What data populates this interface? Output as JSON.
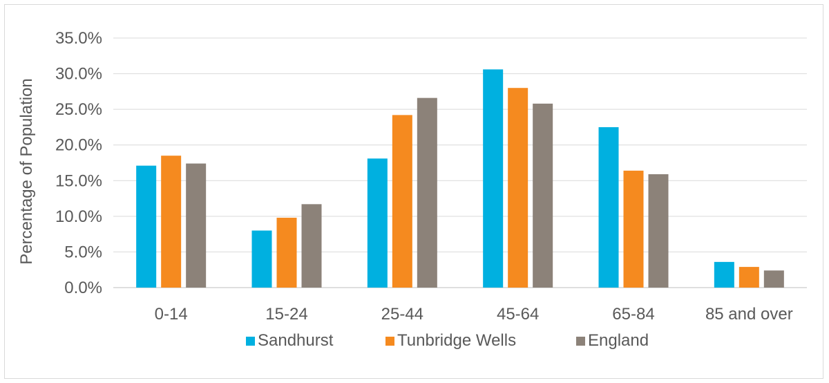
{
  "chart_data": {
    "type": "bar",
    "title": "",
    "xlabel": "",
    "ylabel": "Percentage of Population",
    "categories": [
      "0-14",
      "15-24",
      "25-44",
      "45-64",
      "65-84",
      "85 and over"
    ],
    "ylim": [
      0,
      35
    ],
    "yticks": [
      "0.0%",
      "5.0%",
      "10.0%",
      "15.0%",
      "20.0%",
      "25.0%",
      "30.0%",
      "35.0%"
    ],
    "grid": true,
    "legend_position": "bottom",
    "series": [
      {
        "name": "Sandhurst",
        "color": "#00b0e0",
        "values": [
          17.1,
          8.0,
          18.1,
          30.6,
          22.5,
          3.6
        ]
      },
      {
        "name": "Tunbridge Wells",
        "color": "#f58a1f",
        "values": [
          18.5,
          9.8,
          24.2,
          28.0,
          16.4,
          2.9
        ]
      },
      {
        "name": "England",
        "color": "#8c8279",
        "values": [
          17.4,
          11.7,
          26.6,
          25.8,
          15.9,
          2.4
        ]
      }
    ]
  }
}
